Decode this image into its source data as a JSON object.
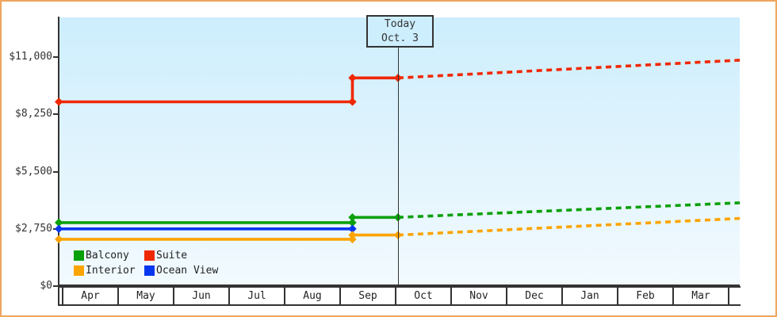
{
  "appearance": {
    "frame_border_color": "#efa55f",
    "plot_gradient_top": "#cdeefd",
    "plot_gradient_bottom": "#f2fafe",
    "axis_color": "#333333",
    "today_box_bg": "#cdeefd",
    "text_color": "#333333"
  },
  "chart_data": {
    "type": "line",
    "description_units": "price in USD; x in months, m = months after Apr 1",
    "y_max_tick": 11000,
    "ylim": [
      0,
      12900
    ],
    "grid": "off",
    "y_ticks": [
      {
        "value": 11000,
        "label": "$11,000"
      },
      {
        "value": 8250,
        "label": "$8,250"
      },
      {
        "value": 5500,
        "label": "$5,500"
      },
      {
        "value": 2750,
        "label": "$2,750"
      },
      {
        "value": 0,
        "label": "$0"
      }
    ],
    "x_categories": [
      "Apr",
      "May",
      "Jun",
      "Jul",
      "Aug",
      "Sep",
      "Oct",
      "Nov",
      "Dec",
      "Jan",
      "Feb",
      "Mar"
    ],
    "today": {
      "label": "Today",
      "date": "Oct. 3",
      "m": 6.07
    },
    "series": [
      {
        "name": "Suite",
        "color": "#f02800",
        "solid": [
          {
            "month": "Apr",
            "m": -0.04,
            "value": 8850
          },
          {
            "month": "Sep",
            "m": 5.25,
            "value": 8850
          },
          {
            "month": "Sep",
            "m": 5.25,
            "value": 10000
          },
          {
            "month": "Oct 3",
            "m": 6.07,
            "value": 10000
          }
        ],
        "projected": [
          {
            "month": "Oct 3",
            "m": 6.07,
            "value": 10000
          },
          {
            "month": "chart-end",
            "m": 12.23,
            "value": 10850
          }
        ]
      },
      {
        "name": "Balcony",
        "color": "#0aa00a",
        "solid": [
          {
            "month": "Apr",
            "m": -0.04,
            "value": 3050
          },
          {
            "month": "Sep",
            "m": 5.25,
            "value": 3050
          },
          {
            "month": "Sep",
            "m": 5.25,
            "value": 3300
          },
          {
            "month": "Oct 3",
            "m": 6.07,
            "value": 3300
          }
        ],
        "projected": [
          {
            "month": "Oct 3",
            "m": 6.07,
            "value": 3300
          },
          {
            "month": "chart-end",
            "m": 12.23,
            "value": 4000
          }
        ]
      },
      {
        "name": "Ocean View",
        "color": "#0636ef",
        "solid": [
          {
            "month": "Apr",
            "m": -0.04,
            "value": 2750
          },
          {
            "month": "Sep",
            "m": 5.25,
            "value": 2750
          }
        ],
        "projected": []
      },
      {
        "name": "Interior",
        "color": "#fca400",
        "solid": [
          {
            "month": "Apr",
            "m": -0.04,
            "value": 2250
          },
          {
            "month": "Sep",
            "m": 5.25,
            "value": 2250
          },
          {
            "month": "Sep",
            "m": 5.25,
            "value": 2450
          },
          {
            "month": "Oct 3",
            "m": 6.07,
            "value": 2450
          }
        ],
        "projected": [
          {
            "month": "Oct 3",
            "m": 6.07,
            "value": 2450
          },
          {
            "month": "chart-end",
            "m": 12.23,
            "value": 3250
          }
        ]
      }
    ],
    "legend": {
      "position": "bottom-left-inside-plot",
      "items": [
        {
          "label": "Balcony",
          "color": "#0aa00a"
        },
        {
          "label": "Suite",
          "color": "#f02800"
        },
        {
          "label": "Interior",
          "color": "#fca400"
        },
        {
          "label": "Ocean View",
          "color": "#0636ef"
        }
      ]
    }
  }
}
